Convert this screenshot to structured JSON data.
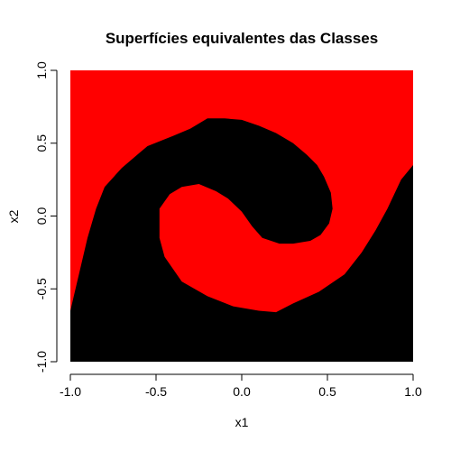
{
  "chart_data": {
    "type": "heatmap",
    "title": "Superfícies equivalentes das Classes",
    "xlabel": "x1",
    "ylabel": "x2",
    "xlim": [
      -1.0,
      1.0
    ],
    "ylim": [
      -1.0,
      1.0
    ],
    "xticks": [
      "-1.0",
      "-0.5",
      "0.0",
      "0.5",
      "1.0"
    ],
    "yticks": [
      "-1.0",
      "-0.5",
      "0.0",
      "0.5",
      "1.0"
    ],
    "grid": false,
    "legend": "none",
    "classes": [
      {
        "name": "red",
        "color": "#ff0000"
      },
      {
        "name": "black",
        "color": "#000000"
      }
    ],
    "regions": [
      {
        "class": "black",
        "boundary": [
          [
            -1.0,
            -0.65
          ],
          [
            -0.95,
            -0.4
          ],
          [
            -0.9,
            -0.15
          ],
          [
            -0.85,
            0.05
          ],
          [
            -0.8,
            0.2
          ],
          [
            -0.7,
            0.33
          ],
          [
            -0.6,
            0.43
          ],
          [
            -0.55,
            0.48
          ],
          [
            -0.4,
            0.55
          ],
          [
            -0.3,
            0.6
          ],
          [
            -0.2,
            0.67
          ],
          [
            -0.1,
            0.67
          ],
          [
            0.0,
            0.66
          ],
          [
            0.1,
            0.62
          ],
          [
            0.2,
            0.57
          ],
          [
            0.3,
            0.5
          ],
          [
            0.38,
            0.42
          ],
          [
            0.44,
            0.35
          ],
          [
            0.48,
            0.27
          ],
          [
            0.52,
            0.16
          ],
          [
            0.53,
            0.05
          ],
          [
            0.51,
            -0.05
          ],
          [
            0.46,
            -0.13
          ],
          [
            0.4,
            -0.17
          ],
          [
            0.3,
            -0.19
          ],
          [
            0.22,
            -0.19
          ],
          [
            0.12,
            -0.15
          ],
          [
            0.06,
            -0.07
          ],
          [
            0.0,
            0.03
          ],
          [
            -0.08,
            0.12
          ],
          [
            -0.15,
            0.17
          ],
          [
            -0.25,
            0.22
          ],
          [
            -0.35,
            0.2
          ],
          [
            -0.42,
            0.15
          ],
          [
            -0.48,
            0.05
          ],
          [
            -0.48,
            -0.15
          ],
          [
            -0.45,
            -0.28
          ],
          [
            -0.35,
            -0.45
          ],
          [
            -0.2,
            -0.55
          ],
          [
            -0.05,
            -0.62
          ],
          [
            0.1,
            -0.65
          ],
          [
            0.2,
            -0.66
          ],
          [
            0.3,
            -0.6
          ],
          [
            0.45,
            -0.52
          ],
          [
            0.6,
            -0.4
          ],
          [
            0.7,
            -0.25
          ],
          [
            0.78,
            -0.1
          ],
          [
            0.85,
            0.05
          ],
          [
            0.93,
            0.25
          ],
          [
            1.0,
            0.35
          ],
          [
            1.0,
            -1.0
          ],
          [
            -1.0,
            -1.0
          ]
        ]
      }
    ]
  }
}
